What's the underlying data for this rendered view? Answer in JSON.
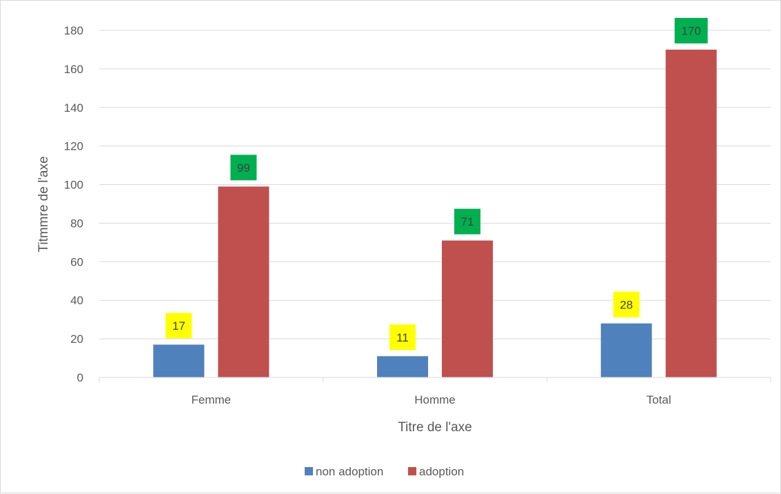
{
  "chart_data": {
    "type": "bar",
    "categories": [
      "Femme",
      "Homme",
      "Total"
    ],
    "series": [
      {
        "name": "non adoption",
        "values": [
          17,
          11,
          28
        ],
        "color": "#4f81bd",
        "label_bg": "#ffff00"
      },
      {
        "name": "adoption",
        "values": [
          99,
          71,
          170
        ],
        "color": "#c0504d",
        "label_bg": "#00b050"
      }
    ],
    "xlabel": "Titre de l'axe",
    "ylabel": "Titmmre de l'axe",
    "ylim": [
      0,
      180
    ],
    "yticks": [
      0,
      20,
      40,
      60,
      80,
      100,
      120,
      140,
      160,
      180
    ],
    "grid": true,
    "legend_position": "bottom"
  }
}
